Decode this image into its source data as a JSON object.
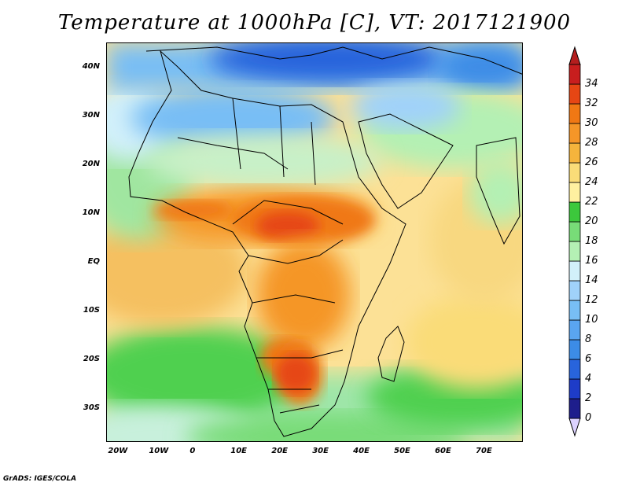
{
  "title": "Temperature at 1000hPa [C], VT: 2017121900",
  "credit": "GrADS: IGES/COLA",
  "map": {
    "projection": "lat-lon",
    "lon_range": [
      -22,
      80
    ],
    "lat_range": [
      -37,
      45
    ],
    "lat_ticks": [
      {
        "value": 40,
        "label": "40N"
      },
      {
        "value": 30,
        "label": "30N"
      },
      {
        "value": 20,
        "label": "20N"
      },
      {
        "value": 10,
        "label": "10N"
      },
      {
        "value": 0,
        "label": "EQ"
      },
      {
        "value": -10,
        "label": "10S"
      },
      {
        "value": -20,
        "label": "20S"
      },
      {
        "value": -30,
        "label": "30S"
      }
    ],
    "lon_ticks": [
      {
        "value": -20,
        "label": "20W"
      },
      {
        "value": -10,
        "label": "10W"
      },
      {
        "value": 0,
        "label": "0"
      },
      {
        "value": 10,
        "label": "10E"
      },
      {
        "value": 20,
        "label": "20E"
      },
      {
        "value": 30,
        "label": "30E"
      },
      {
        "value": 40,
        "label": "40E"
      },
      {
        "value": 50,
        "label": "50E"
      },
      {
        "value": 60,
        "label": "60E"
      },
      {
        "value": 70,
        "label": "70E"
      }
    ]
  },
  "colorbar": {
    "levels": [
      0,
      2,
      4,
      6,
      8,
      10,
      12,
      14,
      16,
      18,
      20,
      22,
      24,
      26,
      28,
      30,
      32,
      34
    ],
    "labels": [
      "0",
      "2",
      "4",
      "6",
      "8",
      "10",
      "12",
      "14",
      "16",
      "18",
      "20",
      "22",
      "24",
      "26",
      "28",
      "30",
      "32",
      "34"
    ],
    "colors": [
      "#1e1e8c",
      "#1e3cc8",
      "#2864dc",
      "#3c8ce6",
      "#5aa5f0",
      "#78bef5",
      "#a0d2fa",
      "#d2f0fa",
      "#b4f0b4",
      "#78dc78",
      "#3cc83c",
      "#fff0a0",
      "#fadc78",
      "#f5b43c",
      "#f59628",
      "#f07814",
      "#e64614",
      "#c81e1e"
    ],
    "under_color": "#dcd2ff",
    "over_color": "#b41e1e"
  }
}
